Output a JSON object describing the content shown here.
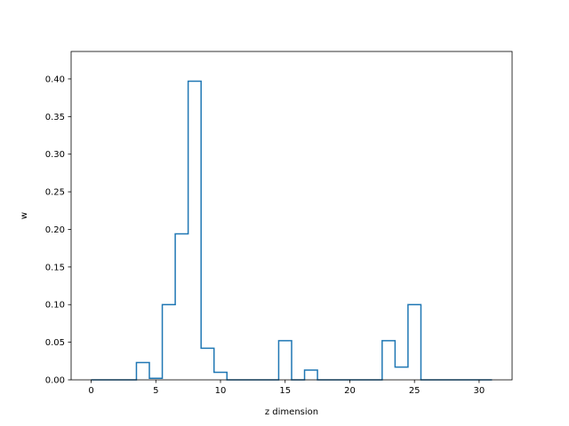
{
  "chart_data": {
    "type": "line",
    "style": "step-mid",
    "title": "",
    "xlabel": "z dimension",
    "ylabel": "w",
    "xlim": [
      -1.55,
      32.55
    ],
    "ylim": [
      0,
      0.4365
    ],
    "x_ticks": [
      0,
      5,
      10,
      15,
      20,
      25,
      30
    ],
    "y_ticks": [
      0.0,
      0.05,
      0.1,
      0.15,
      0.2,
      0.25,
      0.3,
      0.35,
      0.4
    ],
    "y_tick_labels": [
      "0.00",
      "0.05",
      "0.10",
      "0.15",
      "0.20",
      "0.25",
      "0.30",
      "0.35",
      "0.40"
    ],
    "grid": false,
    "line_color": "#1f77b4",
    "series": [
      {
        "x": [
          0,
          1,
          2,
          3,
          4,
          5,
          6,
          7,
          8,
          9,
          10,
          11,
          12,
          13,
          14,
          15,
          16,
          17,
          18,
          19,
          20,
          21,
          22,
          23,
          24,
          25,
          26,
          27,
          28,
          29,
          30,
          31
        ],
        "values": [
          0,
          0,
          0,
          0,
          0.023,
          0.002,
          0.1,
          0.194,
          0.397,
          0.042,
          0.01,
          0,
          0,
          0,
          0,
          0.052,
          0,
          0.013,
          0,
          0,
          0,
          0,
          0,
          0.052,
          0.017,
          0.1,
          0,
          0,
          0,
          0,
          0,
          0
        ]
      }
    ]
  }
}
